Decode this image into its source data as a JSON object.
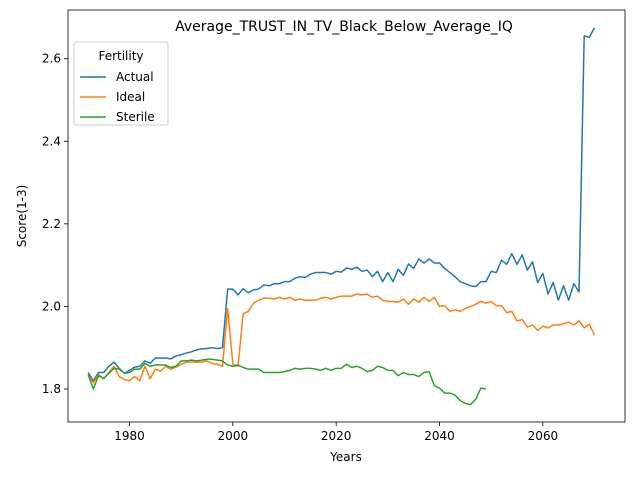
{
  "chart_data": {
    "type": "line",
    "title": "Average_TRUST_IN_TV_Black_Below_Average_IQ",
    "xlabel": "Years",
    "ylabel": "Score(1-3)",
    "xlim": [
      1968.1,
      2075.9
    ],
    "ylim": [
      1.72,
      2.718
    ],
    "xticks": [
      1980,
      2000,
      2020,
      2040,
      2060
    ],
    "yticks": [
      1.8,
      2.0,
      2.2,
      2.4,
      2.6
    ],
    "ytick_labels": [
      "1.8",
      "2.0",
      "2.2",
      "2.4",
      "2.6"
    ],
    "grid": false,
    "legend": {
      "title": "Fertility",
      "position": "top-left"
    },
    "series": [
      {
        "name": "Actual",
        "color": "#1f77b4",
        "x": [
          1972,
          1973,
          1974,
          1975,
          1976,
          1977,
          1978,
          1979,
          1980,
          1981,
          1982,
          1983,
          1984,
          1985,
          1986,
          1987,
          1988,
          1989,
          1990,
          1991,
          1992,
          1993,
          1994,
          1995,
          1996,
          1997,
          1998,
          1999,
          2000,
          2001,
          2002,
          2003,
          2004,
          2005,
          2006,
          2007,
          2008,
          2009,
          2010,
          2011,
          2012,
          2013,
          2014,
          2015,
          2016,
          2017,
          2018,
          2019,
          2020,
          2021,
          2022,
          2023,
          2024,
          2025,
          2026,
          2027,
          2028,
          2029,
          2030,
          2031,
          2032,
          2033,
          2034,
          2035,
          2036,
          2037,
          2038,
          2039,
          2040,
          2041,
          2042,
          2043,
          2044,
          2045,
          2046,
          2047,
          2048,
          2049,
          2050,
          2051,
          2052,
          2053,
          2054,
          2055,
          2056,
          2057,
          2058,
          2059,
          2060,
          2061,
          2062,
          2063,
          2064,
          2065,
          2066,
          2067,
          2068,
          2069,
          2070
        ],
        "values": [
          1.84,
          1.82,
          1.84,
          1.84,
          1.855,
          1.865,
          1.85,
          1.838,
          1.845,
          1.853,
          1.855,
          1.868,
          1.862,
          1.875,
          1.875,
          1.875,
          1.873,
          1.88,
          1.883,
          1.887,
          1.89,
          1.895,
          1.897,
          1.898,
          1.9,
          1.898,
          1.9,
          2.042,
          2.042,
          2.028,
          2.043,
          2.033,
          2.04,
          2.042,
          2.052,
          2.05,
          2.055,
          2.055,
          2.06,
          2.06,
          2.068,
          2.072,
          2.07,
          2.078,
          2.082,
          2.082,
          2.082,
          2.078,
          2.085,
          2.083,
          2.093,
          2.09,
          2.095,
          2.085,
          2.088,
          2.072,
          2.085,
          2.06,
          2.082,
          2.06,
          2.09,
          2.075,
          2.103,
          2.092,
          2.115,
          2.105,
          2.115,
          2.105,
          2.105,
          2.092,
          2.082,
          2.072,
          2.06,
          2.055,
          2.05,
          2.048,
          2.06,
          2.06,
          2.085,
          2.082,
          2.112,
          2.102,
          2.128,
          2.102,
          2.125,
          2.088,
          2.108,
          2.058,
          2.08,
          2.03,
          2.058,
          2.015,
          2.05,
          2.015,
          2.055,
          2.035,
          2.655,
          2.652,
          2.675
        ]
      },
      {
        "name": "Ideal",
        "color": "#ff7f0e",
        "x": [
          1972,
          1973,
          1974,
          1975,
          1976,
          1977,
          1978,
          1979,
          1980,
          1981,
          1982,
          1983,
          1984,
          1985,
          1986,
          1987,
          1988,
          1989,
          1990,
          1991,
          1992,
          1993,
          1994,
          1995,
          1996,
          1997,
          1998,
          1999,
          2000,
          2001,
          2002,
          2003,
          2004,
          2005,
          2006,
          2007,
          2008,
          2009,
          2010,
          2011,
          2012,
          2013,
          2014,
          2015,
          2016,
          2017,
          2018,
          2019,
          2020,
          2021,
          2022,
          2023,
          2024,
          2025,
          2026,
          2027,
          2028,
          2029,
          2030,
          2031,
          2032,
          2033,
          2034,
          2035,
          2036,
          2037,
          2038,
          2039,
          2040,
          2041,
          2042,
          2043,
          2044,
          2045,
          2046,
          2047,
          2048,
          2049,
          2050,
          2051,
          2052,
          2053,
          2054,
          2055,
          2056,
          2057,
          2058,
          2059,
          2060,
          2061,
          2062,
          2063,
          2064,
          2065,
          2066,
          2067,
          2068,
          2069,
          2070
        ],
        "values": [
          1.835,
          1.815,
          1.835,
          1.825,
          1.84,
          1.855,
          1.83,
          1.823,
          1.82,
          1.83,
          1.82,
          1.855,
          1.825,
          1.848,
          1.843,
          1.855,
          1.848,
          1.853,
          1.86,
          1.865,
          1.865,
          1.865,
          1.865,
          1.868,
          1.862,
          1.86,
          1.855,
          1.995,
          1.86,
          1.855,
          1.982,
          1.988,
          2.008,
          2.015,
          2.02,
          2.02,
          2.018,
          2.022,
          2.018,
          2.022,
          2.015,
          2.018,
          2.015,
          2.015,
          2.015,
          2.02,
          2.022,
          2.018,
          2.022,
          2.025,
          2.025,
          2.025,
          2.03,
          2.028,
          2.03,
          2.022,
          2.025,
          2.015,
          2.012,
          2.012,
          2.01,
          2.018,
          2.005,
          2.018,
          2.01,
          2.022,
          2.012,
          2.022,
          2.0,
          2.002,
          1.988,
          1.992,
          1.988,
          1.995,
          2.0,
          2.005,
          2.012,
          2.008,
          2.012,
          2.002,
          2.002,
          1.985,
          1.988,
          1.965,
          1.968,
          1.95,
          1.955,
          1.942,
          1.952,
          1.948,
          1.955,
          1.955,
          1.958,
          1.962,
          1.955,
          1.965,
          1.948,
          1.957,
          1.93
        ]
      },
      {
        "name": "Sterile",
        "color": "#2ca02c",
        "x": [
          1972,
          1973,
          1974,
          1975,
          1976,
          1977,
          1978,
          1979,
          1980,
          1981,
          1982,
          1983,
          1984,
          1985,
          1986,
          1987,
          1988,
          1989,
          1990,
          1991,
          1992,
          1993,
          1994,
          1995,
          1996,
          1997,
          1998,
          1999,
          2000,
          2001,
          2002,
          2003,
          2004,
          2005,
          2006,
          2007,
          2008,
          2009,
          2010,
          2011,
          2012,
          2013,
          2014,
          2015,
          2016,
          2017,
          2018,
          2019,
          2020,
          2021,
          2022,
          2023,
          2024,
          2025,
          2026,
          2027,
          2028,
          2029,
          2030,
          2031,
          2032,
          2033,
          2034,
          2035,
          2036,
          2037,
          2038,
          2039,
          2040,
          2041,
          2042,
          2043,
          2044,
          2045,
          2046,
          2047,
          2048,
          2049
        ],
        "values": [
          1.835,
          1.8,
          1.832,
          1.825,
          1.838,
          1.85,
          1.848,
          1.838,
          1.84,
          1.848,
          1.848,
          1.862,
          1.855,
          1.858,
          1.858,
          1.858,
          1.852,
          1.855,
          1.868,
          1.868,
          1.87,
          1.868,
          1.87,
          1.872,
          1.872,
          1.87,
          1.868,
          1.858,
          1.855,
          1.858,
          1.852,
          1.848,
          1.848,
          1.848,
          1.84,
          1.84,
          1.84,
          1.84,
          1.842,
          1.845,
          1.85,
          1.848,
          1.85,
          1.85,
          1.848,
          1.845,
          1.85,
          1.845,
          1.85,
          1.85,
          1.86,
          1.852,
          1.855,
          1.85,
          1.842,
          1.845,
          1.855,
          1.852,
          1.845,
          1.845,
          1.832,
          1.84,
          1.835,
          1.835,
          1.83,
          1.84,
          1.842,
          1.808,
          1.802,
          1.79,
          1.79,
          1.785,
          1.772,
          1.765,
          1.762,
          1.775,
          1.802,
          1.8
        ]
      }
    ]
  }
}
